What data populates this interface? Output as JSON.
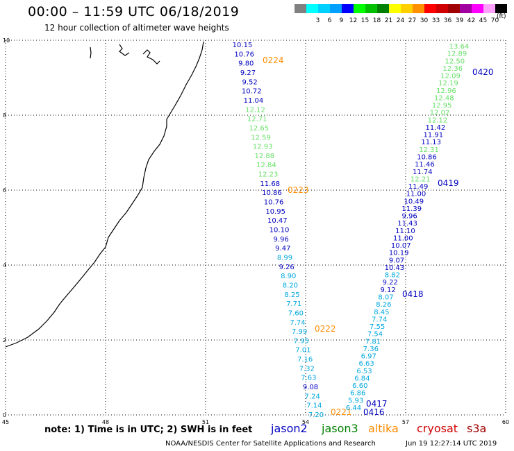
{
  "header": {
    "title": "00:00 – 11:59 UTC 06/18/2019",
    "subtitle": "12 hour collection of altimeter wave heights"
  },
  "scale": {
    "unit": "(ft)",
    "items": [
      {
        "label": "",
        "color": "#808080"
      },
      {
        "label": "3",
        "color": "#00ffff"
      },
      {
        "label": "6",
        "color": "#00d0ff"
      },
      {
        "label": "9",
        "color": "#00a0ff"
      },
      {
        "label": "12",
        "color": "#0000ff"
      },
      {
        "label": "15",
        "color": "#00ff00"
      },
      {
        "label": "18",
        "color": "#00c000"
      },
      {
        "label": "21",
        "color": "#008000"
      },
      {
        "label": "24",
        "color": "#ffff00"
      },
      {
        "label": "27",
        "color": "#ffd000"
      },
      {
        "label": "30",
        "color": "#ff9000"
      },
      {
        "label": "33",
        "color": "#ff0000"
      },
      {
        "label": "36",
        "color": "#d00000"
      },
      {
        "label": "39",
        "color": "#a00000"
      },
      {
        "label": "42",
        "color": "#a000a0"
      },
      {
        "label": "45",
        "color": "#ff00ff"
      },
      {
        "label": "70",
        "color": "#ffa0ff"
      },
      {
        "label": "",
        "color": "#000000"
      }
    ]
  },
  "axes": {
    "x_ticks": [
      "45",
      "48",
      "51",
      "54",
      "57",
      "60"
    ],
    "y_ticks": [
      "0",
      "2",
      "4",
      "6",
      "8",
      "10"
    ]
  },
  "tracks": [
    {
      "points": [
        {
          "v": "10.15",
          "c": "#0000c0"
        },
        {
          "v": "10.76",
          "c": "#0000c0"
        },
        {
          "v": "9.80",
          "c": "#0000c0"
        },
        {
          "v": "9.27",
          "c": "#0000c0"
        },
        {
          "v": "9.52",
          "c": "#0000c0"
        },
        {
          "v": "10.72",
          "c": "#0000c0"
        },
        {
          "v": "11.04",
          "c": "#0000c0"
        },
        {
          "v": "12.12",
          "c": "#66e066"
        },
        {
          "v": "12.71",
          "c": "#66e066"
        },
        {
          "v": "12.65",
          "c": "#66e066"
        },
        {
          "v": "12.59",
          "c": "#66e066"
        },
        {
          "v": "12.93",
          "c": "#66e066"
        },
        {
          "v": "12.88",
          "c": "#66e066"
        },
        {
          "v": "12.84",
          "c": "#66e066"
        },
        {
          "v": "12.23",
          "c": "#66e066"
        },
        {
          "v": "11.68",
          "c": "#0000c0"
        },
        {
          "v": "10.86",
          "c": "#0000c0"
        },
        {
          "v": "10.76",
          "c": "#0000c0"
        },
        {
          "v": "10.95",
          "c": "#0000c0"
        },
        {
          "v": "10.47",
          "c": "#0000c0"
        },
        {
          "v": "10.10",
          "c": "#0000c0"
        },
        {
          "v": "9.96",
          "c": "#0000c0"
        },
        {
          "v": "9.47",
          "c": "#0000c0"
        },
        {
          "v": "8.99",
          "c": "#00a8e0"
        },
        {
          "v": "9.26",
          "c": "#0000c0"
        },
        {
          "v": "8.90",
          "c": "#00a8e0"
        },
        {
          "v": "8.20",
          "c": "#00a8e0"
        },
        {
          "v": "8.25",
          "c": "#00a8e0"
        },
        {
          "v": "7.71",
          "c": "#00a8e0"
        },
        {
          "v": "7.60",
          "c": "#00a8e0"
        },
        {
          "v": "7.74",
          "c": "#00a8e0"
        },
        {
          "v": "7.99",
          "c": "#00a8e0"
        },
        {
          "v": "7.95",
          "c": "#00a8e0"
        },
        {
          "v": "7.01",
          "c": "#00a8e0"
        },
        {
          "v": "7.16",
          "c": "#00a8e0"
        },
        {
          "v": "7.32",
          "c": "#00a8e0"
        },
        {
          "v": "7.63",
          "c": "#00a8e0"
        },
        {
          "v": "9.08",
          "c": "#0000c0"
        },
        {
          "v": "7.24",
          "c": "#00a8e0"
        },
        {
          "v": "7.14",
          "c": "#00a8e0"
        },
        {
          "v": "7.20",
          "c": "#00a8e0"
        }
      ],
      "times": [
        {
          "v": "0224",
          "c": "#ff8c00"
        },
        {
          "v": "0223",
          "c": "#ff8c00"
        },
        {
          "v": "0222",
          "c": "#ff8c00"
        },
        {
          "v": "0221",
          "c": "#ff8c00"
        }
      ]
    },
    {
      "points": [
        {
          "v": "13.64",
          "c": "#66e066"
        },
        {
          "v": "12.89",
          "c": "#66e066"
        },
        {
          "v": "12.50",
          "c": "#66e066"
        },
        {
          "v": "12.36",
          "c": "#66e066"
        },
        {
          "v": "12.09",
          "c": "#66e066"
        },
        {
          "v": "12.19",
          "c": "#66e066"
        },
        {
          "v": "12.96",
          "c": "#66e066"
        },
        {
          "v": "12.48",
          "c": "#66e066"
        },
        {
          "v": "12.95",
          "c": "#66e066"
        },
        {
          "v": "12.02",
          "c": "#66e066"
        },
        {
          "v": "12.12",
          "c": "#66e066"
        },
        {
          "v": "11.42",
          "c": "#0000c0"
        },
        {
          "v": "11.91",
          "c": "#0000c0"
        },
        {
          "v": "11.13",
          "c": "#0000c0"
        },
        {
          "v": "12.31",
          "c": "#66e066"
        },
        {
          "v": "10.86",
          "c": "#0000c0"
        },
        {
          "v": "11.46",
          "c": "#0000c0"
        },
        {
          "v": "11.74",
          "c": "#0000c0"
        },
        {
          "v": "12.21",
          "c": "#66e066"
        },
        {
          "v": "11.49",
          "c": "#0000c0"
        },
        {
          "v": "11.00",
          "c": "#0000c0"
        },
        {
          "v": "10.49",
          "c": "#0000c0"
        },
        {
          "v": "11.39",
          "c": "#0000c0"
        },
        {
          "v": "9.96",
          "c": "#0000c0"
        },
        {
          "v": "11.43",
          "c": "#0000c0"
        },
        {
          "v": "11.10",
          "c": "#0000c0"
        },
        {
          "v": "11.00",
          "c": "#0000c0"
        },
        {
          "v": "10.07",
          "c": "#0000c0"
        },
        {
          "v": "10.19",
          "c": "#0000c0"
        },
        {
          "v": "9.07",
          "c": "#0000c0"
        },
        {
          "v": "10.43",
          "c": "#0000c0"
        },
        {
          "v": "8.82",
          "c": "#00a8e0"
        },
        {
          "v": "9.22",
          "c": "#0000c0"
        },
        {
          "v": "9.12",
          "c": "#0000c0"
        },
        {
          "v": "8.07",
          "c": "#00a8e0"
        },
        {
          "v": "8.26",
          "c": "#00a8e0"
        },
        {
          "v": "8.45",
          "c": "#00a8e0"
        },
        {
          "v": "7.74",
          "c": "#00a8e0"
        },
        {
          "v": "7.55",
          "c": "#00a8e0"
        },
        {
          "v": "7.54",
          "c": "#00a8e0"
        },
        {
          "v": "7.81",
          "c": "#00a8e0"
        },
        {
          "v": "7.36",
          "c": "#00a8e0"
        },
        {
          "v": "6.97",
          "c": "#00a8e0"
        },
        {
          "v": "6.63",
          "c": "#00a8e0"
        },
        {
          "v": "6.53",
          "c": "#00a8e0"
        },
        {
          "v": "6.84",
          "c": "#00a8e0"
        },
        {
          "v": "6.60",
          "c": "#00a8e0"
        },
        {
          "v": "6.86",
          "c": "#00a8e0"
        },
        {
          "v": "5.93",
          "c": "#00a8e0"
        },
        {
          "v": "6.44",
          "c": "#00a8e0"
        }
      ],
      "times": [
        {
          "v": "0420",
          "c": "#0000c0"
        },
        {
          "v": "0419",
          "c": "#0000c0"
        },
        {
          "v": "0418",
          "c": "#0000c0"
        },
        {
          "v": "0417",
          "c": "#0000c0"
        },
        {
          "v": "0416",
          "c": "#0000c0"
        }
      ]
    }
  ],
  "note": "note: 1) Time is in UTC; 2) SWH is in feet",
  "legend": [
    {
      "label": "jason2",
      "color": "#0000c0"
    },
    {
      "label": "jason3",
      "color": "#008000"
    },
    {
      "label": "altika",
      "color": "#ff8c00"
    },
    {
      "label": "cryosat",
      "color": "#d00000"
    },
    {
      "label": "s3a",
      "color": "#a00000"
    }
  ],
  "credit": "NOAA/NESDIS Center for Satellite Applications and Research",
  "timestamp": "Jun 19 12:27:14 UTC 2019"
}
